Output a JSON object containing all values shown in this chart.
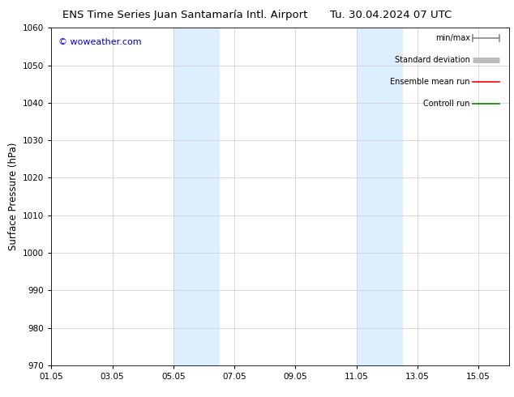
{
  "title_left": "ENS Time Series Juan Santamaría Intl. Airport",
  "title_right": "Tu. 30.04.2024 07 UTC",
  "ylabel": "Surface Pressure (hPa)",
  "ylim": [
    970,
    1060
  ],
  "yticks": [
    970,
    980,
    990,
    1000,
    1010,
    1020,
    1030,
    1040,
    1050,
    1060
  ],
  "xtick_labels": [
    "01.05",
    "03.05",
    "05.05",
    "07.05",
    "09.05",
    "11.05",
    "13.05",
    "15.05"
  ],
  "xtick_positions": [
    0,
    2,
    4,
    6,
    8,
    10,
    12,
    14
  ],
  "xlim": [
    0,
    15
  ],
  "shaded_bands": [
    {
      "xstart": 4,
      "xend": 5.5,
      "color": "#ddeeff"
    },
    {
      "xstart": 10,
      "xend": 11.5,
      "color": "#ddeeff"
    }
  ],
  "watermark": "© woweather.com",
  "watermark_color": "#0000cc",
  "legend_items": [
    {
      "label": "min/max",
      "color": "#888888",
      "lw": 1.2,
      "type": "minmax"
    },
    {
      "label": "Standard deviation",
      "color": "#bbbbbb",
      "lw": 5,
      "type": "thick"
    },
    {
      "label": "Ensemble mean run",
      "color": "#ff0000",
      "lw": 1.2,
      "type": "line"
    },
    {
      "label": "Controll run",
      "color": "#008800",
      "lw": 1.2,
      "type": "line"
    }
  ],
  "bg_color": "#ffffff",
  "plot_bg_color": "#ffffff",
  "grid_color": "#cccccc",
  "tick_label_fontsize": 7.5,
  "title_fontsize": 9.5,
  "ylabel_fontsize": 8.5,
  "legend_fontsize": 7
}
